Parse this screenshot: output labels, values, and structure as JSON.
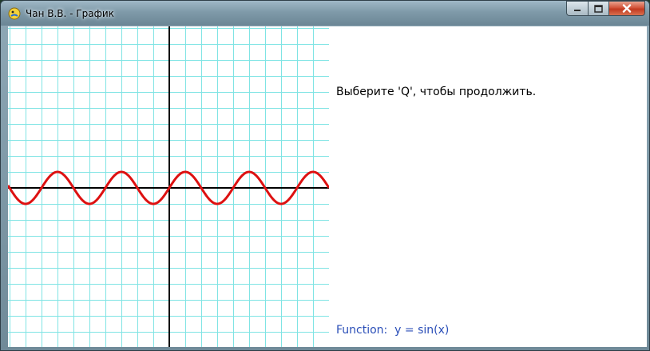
{
  "window": {
    "title": "Чан В.В. - График",
    "icon": "pygame-snake-icon"
  },
  "controls": {
    "minimize_icon": "minimize-icon",
    "maximize_icon": "maximize-icon",
    "close_icon": "close-icon"
  },
  "colors": {
    "grid": "#7fe4e4",
    "axes": "#000000",
    "curve": "#dd1111",
    "function_text": "#2b4fb8"
  },
  "prompt": "Выберите 'Q', чтобы продолжить.",
  "function_label": "Function:  y = sin(x)",
  "chart_data": {
    "type": "line",
    "function": "y = sin(x)",
    "series": [
      {
        "x": [
          -6.28,
          -5.5,
          -4.71,
          -3.93,
          -3.14,
          -2.36,
          -1.57,
          -0.79,
          0,
          0.79,
          1.57,
          2.36,
          3.14,
          3.93,
          4.71,
          5.5,
          6.28,
          7.07,
          7.85,
          8.64,
          9.42
        ],
        "values": [
          0,
          0.71,
          1,
          0.71,
          0,
          -0.71,
          -1,
          -0.71,
          0,
          0.71,
          1,
          0.71,
          0,
          -0.71,
          -1,
          -0.71,
          0,
          0.71,
          1,
          0.71,
          0
        ]
      }
    ],
    "grid": true
  }
}
